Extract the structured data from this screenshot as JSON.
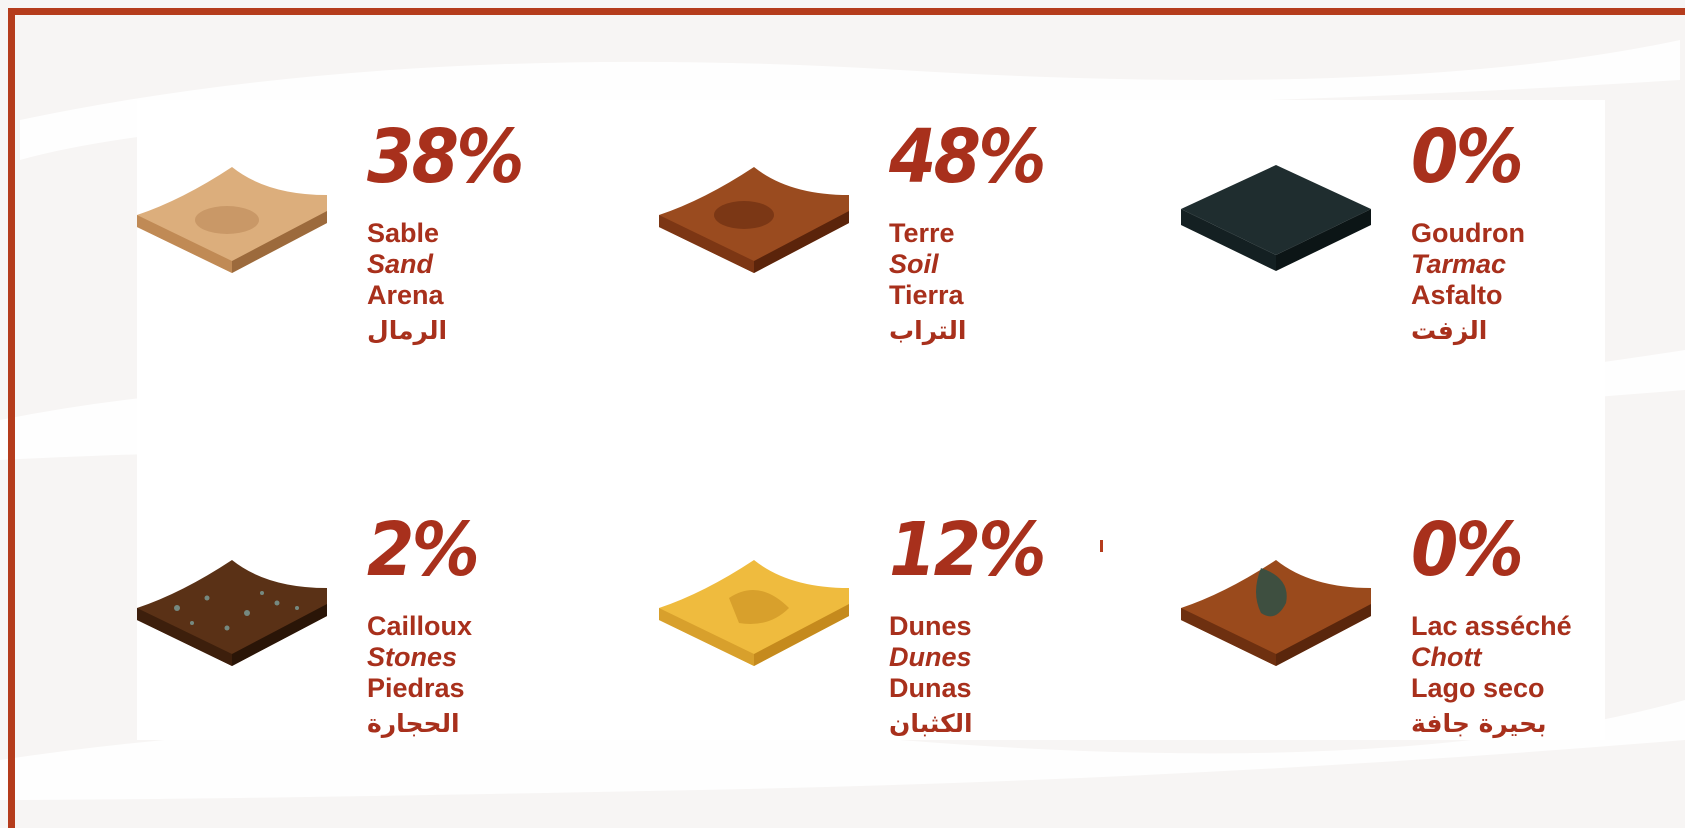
{
  "terrains": [
    {
      "percent": "38%",
      "fr": "Sable",
      "en": "Sand",
      "es": "Arena",
      "ar": "الرمال",
      "icon": "sand-terrain-icon",
      "top_color": "#dcae7c",
      "side_color": "#c08a55",
      "dark_color": "#9c6a3c"
    },
    {
      "percent": "48%",
      "fr": "Terre",
      "en": "Soil",
      "es": "Tierra",
      "ar": "التراب",
      "icon": "soil-terrain-icon",
      "top_color": "#9a4b1f",
      "side_color": "#7c3614",
      "dark_color": "#5b240b"
    },
    {
      "percent": "0%",
      "fr": "Goudron",
      "en": "Tarmac",
      "es": "Asfalto",
      "ar": "الزفت",
      "icon": "tarmac-terrain-icon",
      "top_color": "#1f2d2f",
      "side_color": "#142022",
      "dark_color": "#0c1516"
    },
    {
      "percent": "2%",
      "fr": "Cailloux",
      "en": "Stones",
      "es": "Piedras",
      "ar": "الحجارة",
      "icon": "stones-terrain-icon",
      "top_color": "#5a3116",
      "side_color": "#3d1f0c",
      "dark_color": "#2a1507"
    },
    {
      "percent": "12%",
      "fr": "Dunes",
      "en": "Dunes",
      "es": "Dunas",
      "ar": "الكثبان",
      "icon": "dunes-terrain-icon",
      "top_color": "#efbb3e",
      "side_color": "#d8a02c",
      "dark_color": "#c58a1d"
    },
    {
      "percent": "0%",
      "fr": "Lac asséché",
      "en": "Chott",
      "es": "Lago seco",
      "ar": "بحيرة جافة",
      "icon": "chott-terrain-icon",
      "top_color": "#9a4a1c",
      "side_color": "#6e3010",
      "dark_color": "#27504a"
    }
  ],
  "colors": {
    "accent": "#a8301c",
    "frame": "#b53c1c"
  }
}
